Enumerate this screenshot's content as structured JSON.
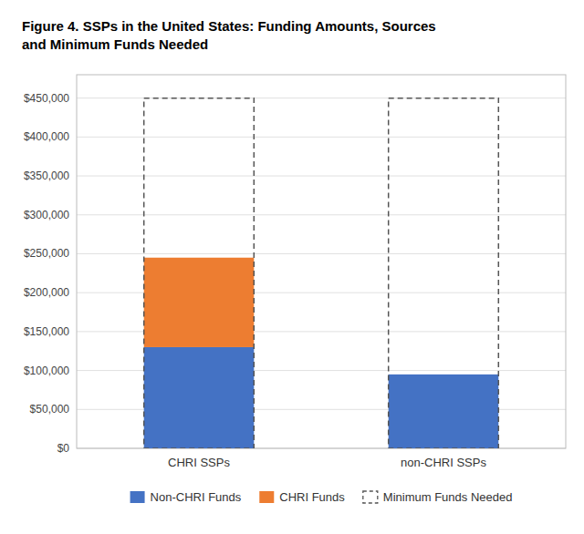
{
  "chart_data": {
    "type": "bar",
    "stacked": true,
    "title": "Figure 4. SSPs in the United States: Funding Amounts, Sources",
    "subtitle": "and Minimum Funds Needed",
    "categories": [
      "CHRI SSPs",
      "non-CHRI SSPs"
    ],
    "series": [
      {
        "name": "Non-CHRI Funds",
        "color": "#4472C4",
        "values": [
          130000,
          95000
        ]
      },
      {
        "name": "CHRI Funds",
        "color": "#ED7D31",
        "values": [
          115000,
          0
        ]
      },
      {
        "name": "Minimum Funds Needed",
        "type": "outline",
        "line_style": "dashed",
        "color": "#555555",
        "values": [
          450000,
          450000
        ]
      }
    ],
    "ylim": [
      0,
      480000
    ],
    "yticks": [
      {
        "value": 0,
        "label": "$0"
      },
      {
        "value": 50000,
        "label": "$50,000"
      },
      {
        "value": 100000,
        "label": "$100,000"
      },
      {
        "value": 150000,
        "label": "$150,000"
      },
      {
        "value": 200000,
        "label": "$200,000"
      },
      {
        "value": 250000,
        "label": "$250,000"
      },
      {
        "value": 300000,
        "label": "$300,000"
      },
      {
        "value": 350000,
        "label": "$350,000"
      },
      {
        "value": 400000,
        "label": "$400,000"
      },
      {
        "value": 450000,
        "label": "$450,000"
      }
    ],
    "grid": true,
    "legend": "bottom"
  }
}
